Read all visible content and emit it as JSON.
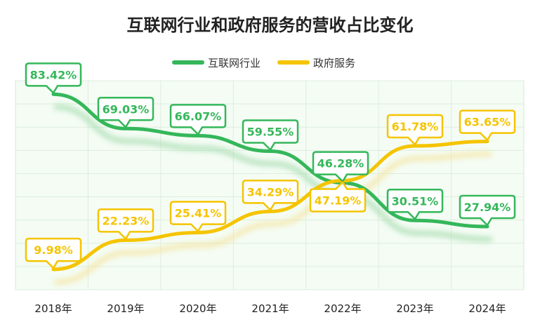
{
  "chart_data": {
    "type": "line",
    "title": "互联网行业和政府服务的营收占比变化",
    "xlabel": "",
    "ylabel": "",
    "categories": [
      "2018年",
      "2019年",
      "2020年",
      "2021年",
      "2022年",
      "2023年",
      "2024年"
    ],
    "series": [
      {
        "name": "互联网行业",
        "color": "#34b75a",
        "values": [
          83.42,
          69.03,
          66.07,
          59.55,
          46.28,
          30.51,
          27.94
        ],
        "labels": [
          "83.42%",
          "69.03%",
          "66.07%",
          "59.55%",
          "46.28%",
          "30.51%",
          "27.94%"
        ]
      },
      {
        "name": "政府服务",
        "color": "#f5c400",
        "values": [
          9.98,
          22.23,
          25.41,
          34.29,
          47.19,
          61.78,
          63.65
        ],
        "labels": [
          "9.98%",
          "22.23%",
          "25.41%",
          "34.29%",
          "47.19%",
          "61.78%",
          "63.65%"
        ]
      }
    ],
    "ylim": [
      0,
      90
    ],
    "grid": true,
    "legend_position": "top-center"
  }
}
